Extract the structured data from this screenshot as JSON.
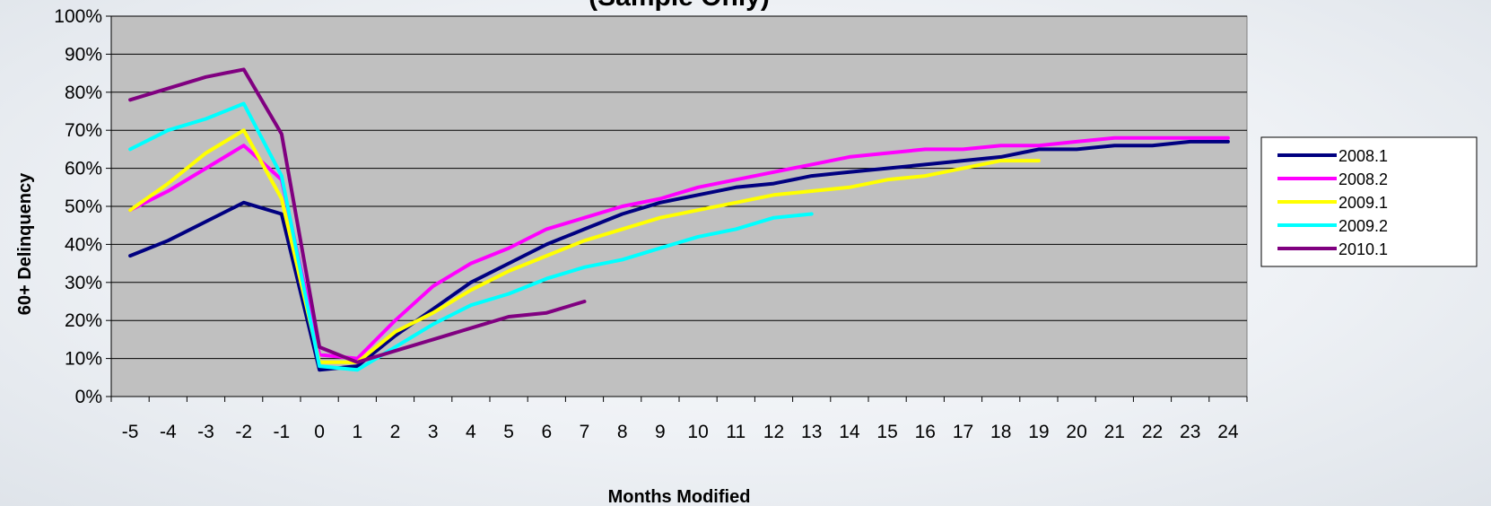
{
  "chart_data": {
    "type": "line",
    "title": "(Sample Only)",
    "xlabel": "Months Modified",
    "ylabel": "60+ Delinquency",
    "x": [
      -5,
      -4,
      -3,
      -2,
      -1,
      0,
      1,
      2,
      3,
      4,
      5,
      6,
      7,
      8,
      9,
      10,
      11,
      12,
      13,
      14,
      15,
      16,
      17,
      18,
      19,
      20,
      21,
      22,
      23,
      24
    ],
    "x_tick_labels": [
      "-5",
      "-4",
      "-3",
      "-2",
      "-1",
      "0",
      "1",
      "2",
      "3",
      "4",
      "5",
      "6",
      "7",
      "8",
      "9",
      "10",
      "11",
      "12",
      "13",
      "14",
      "15",
      "16",
      "17",
      "18",
      "19",
      "20",
      "21",
      "22",
      "23",
      "24"
    ],
    "y_tick_labels": [
      "0%",
      "10%",
      "20%",
      "30%",
      "40%",
      "50%",
      "60%",
      "70%",
      "80%",
      "90%",
      "100%"
    ],
    "ylim": [
      0,
      100
    ],
    "y_unit": "%",
    "grid": "horizontal",
    "plot_background": "#c0c0c0",
    "legend_position": "right",
    "series": [
      {
        "name": "2008.1",
        "color": "#000080",
        "values": [
          37,
          41,
          46,
          51,
          48,
          7,
          8,
          16,
          23,
          30,
          35,
          40,
          44,
          48,
          51,
          53,
          55,
          56,
          58,
          59,
          60,
          61,
          62,
          63,
          65,
          65,
          66,
          66,
          67,
          67
        ]
      },
      {
        "name": "2008.2",
        "color": "#ff00ff",
        "values": [
          49,
          54,
          60,
          66,
          57,
          11,
          10,
          20,
          29,
          35,
          39,
          44,
          47,
          50,
          52,
          55,
          57,
          59,
          61,
          63,
          64,
          65,
          65,
          66,
          66,
          67,
          68,
          68,
          68,
          68
        ]
      },
      {
        "name": "2009.1",
        "color": "#ffff00",
        "values": [
          49,
          56,
          64,
          70,
          52,
          9,
          9,
          17,
          22,
          28,
          33,
          37,
          41,
          44,
          47,
          49,
          51,
          53,
          54,
          55,
          57,
          58,
          60,
          62,
          62,
          null,
          null,
          null,
          null,
          null
        ]
      },
      {
        "name": "2009.2",
        "color": "#00ffff",
        "values": [
          65,
          70,
          73,
          77,
          58,
          8,
          7,
          13,
          19,
          24,
          27,
          31,
          34,
          36,
          39,
          42,
          44,
          47,
          48,
          null,
          null,
          null,
          null,
          null,
          null,
          null,
          null,
          null,
          null,
          null
        ]
      },
      {
        "name": "2010.1",
        "color": "#800080",
        "values": [
          78,
          81,
          84,
          86,
          69,
          13,
          9,
          12,
          15,
          18,
          21,
          22,
          25,
          null,
          null,
          null,
          null,
          null,
          null,
          null,
          null,
          null,
          null,
          null,
          null,
          null,
          null,
          null,
          null,
          null
        ]
      }
    ]
  }
}
